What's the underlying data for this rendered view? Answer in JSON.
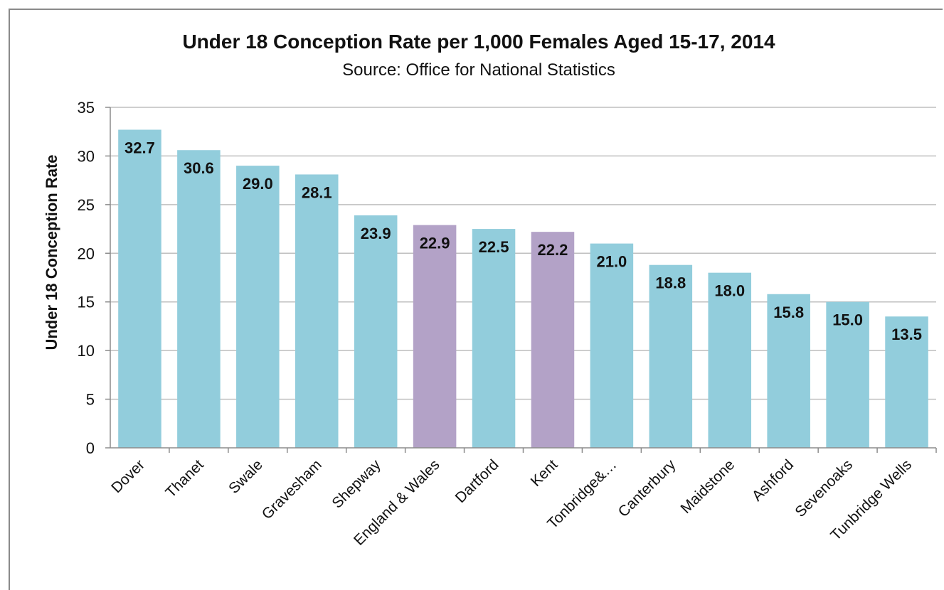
{
  "chart_data": {
    "type": "bar",
    "title": "Under 18 Conception Rate per 1,000 Females Aged 15-17, 2014",
    "subtitle": "Source: Office for National Statistics",
    "xlabel": "",
    "ylabel": "Under 18 Conception Rate",
    "ylim": [
      0,
      35
    ],
    "yticks": [
      "0",
      "5",
      "10",
      "15",
      "20",
      "25",
      "30",
      "35"
    ],
    "grid": true,
    "legend": "none",
    "categories": [
      "Dover",
      "Thanet",
      "Swale",
      "Gravesham",
      "Shepway",
      "England & Wales",
      "Dartford",
      "Kent",
      "Tonbridge&…",
      "Canterbury",
      "Maidstone",
      "Ashford",
      "Sevenoaks",
      "Tunbridge Wells"
    ],
    "values": [
      32.7,
      30.6,
      29.0,
      28.1,
      23.9,
      22.9,
      22.5,
      22.2,
      21.0,
      18.8,
      18.0,
      15.8,
      15.0,
      13.5
    ],
    "data_labels": [
      "32.7",
      "30.6",
      "29.0",
      "28.1",
      "23.9",
      "22.9",
      "22.5",
      "22.2",
      "21.0",
      "18.8",
      "18.0",
      "15.8",
      "15.0",
      "13.5"
    ],
    "highlighted": [
      "England & Wales",
      "Kent"
    ],
    "colors": {
      "bar": "#92cddc",
      "highlight": "#b3a2c7",
      "grid": "#bfbfbf",
      "axis": "#8c8c8c",
      "text": "#111111"
    }
  }
}
